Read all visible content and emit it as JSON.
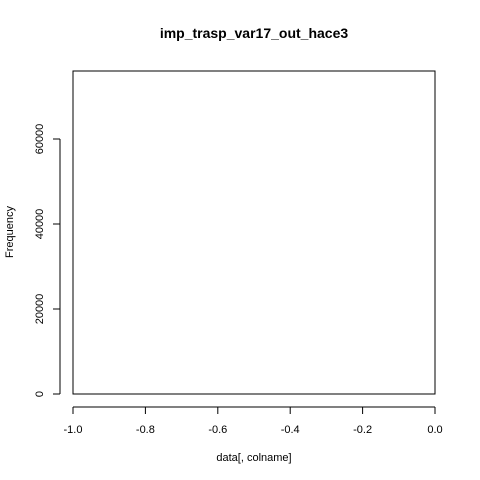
{
  "chart_data": {
    "type": "bar",
    "title": "imp_trasp_var17_out_hace3",
    "xlabel": "data[, colname]",
    "ylabel": "Frequency",
    "xlim": [
      -1.0,
      0.0
    ],
    "ylim": [
      0,
      76000
    ],
    "x_ticks": [
      -1.0,
      -0.8,
      -0.6,
      -0.4,
      -0.2,
      0.0
    ],
    "x_tick_labels": [
      "-1.0",
      "-0.8",
      "-0.6",
      "-0.4",
      "-0.2",
      "0.0"
    ],
    "y_ticks": [
      0,
      20000,
      40000,
      60000
    ],
    "y_tick_labels": [
      "0",
      "20000",
      "40000",
      "60000"
    ],
    "bins": [],
    "values": [],
    "grid": false,
    "legend": "none",
    "colors": {
      "axis": "#000000",
      "background": "#ffffff"
    }
  }
}
